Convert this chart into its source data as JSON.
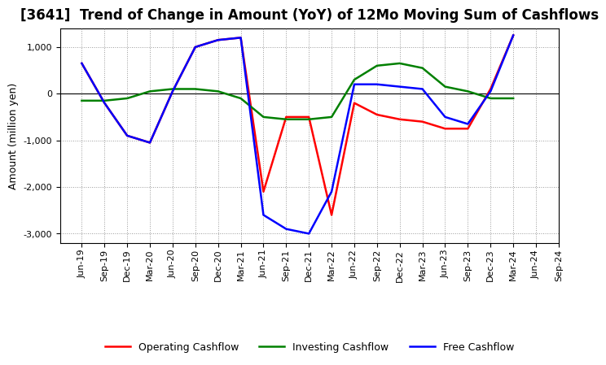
{
  "title": "[3641]  Trend of Change in Amount (YoY) of 12Mo Moving Sum of Cashflows",
  "ylabel": "Amount (million yen)",
  "x_labels": [
    "Jun-19",
    "Sep-19",
    "Dec-19",
    "Mar-20",
    "Jun-20",
    "Sep-20",
    "Dec-20",
    "Mar-21",
    "Jun-21",
    "Sep-21",
    "Dec-21",
    "Mar-22",
    "Jun-22",
    "Sep-22",
    "Dec-22",
    "Mar-23",
    "Jun-23",
    "Sep-23",
    "Dec-23",
    "Mar-24",
    "Jun-24",
    "Sep-24"
  ],
  "operating_cashflow": [
    650,
    -200,
    -900,
    -1050,
    50,
    1000,
    1150,
    1200,
    -2100,
    -500,
    -500,
    -2600,
    -200,
    -450,
    -550,
    -600,
    -750,
    -750,
    100,
    1250,
    null,
    null
  ],
  "investing_cashflow": [
    -150,
    -150,
    -100,
    50,
    100,
    100,
    50,
    -100,
    -500,
    -550,
    -550,
    -500,
    300,
    600,
    650,
    550,
    150,
    50,
    -100,
    -100,
    null,
    null
  ],
  "free_cashflow": [
    650,
    -200,
    -900,
    -1050,
    50,
    1000,
    1150,
    1200,
    -2600,
    -2900,
    -3000,
    -2100,
    200,
    200,
    150,
    100,
    -500,
    -650,
    50,
    1250,
    null,
    null
  ],
  "operating_color": "#ff0000",
  "investing_color": "#008000",
  "free_color": "#0000ff",
  "ylim": [
    -3200,
    1400
  ],
  "yticks": [
    -3000,
    -2000,
    -1000,
    0,
    1000
  ],
  "background_color": "#ffffff",
  "grid_color": "#999999",
  "line_width": 1.8,
  "title_fontsize": 12,
  "axis_fontsize": 9,
  "tick_fontsize": 8,
  "legend_fontsize": 9
}
